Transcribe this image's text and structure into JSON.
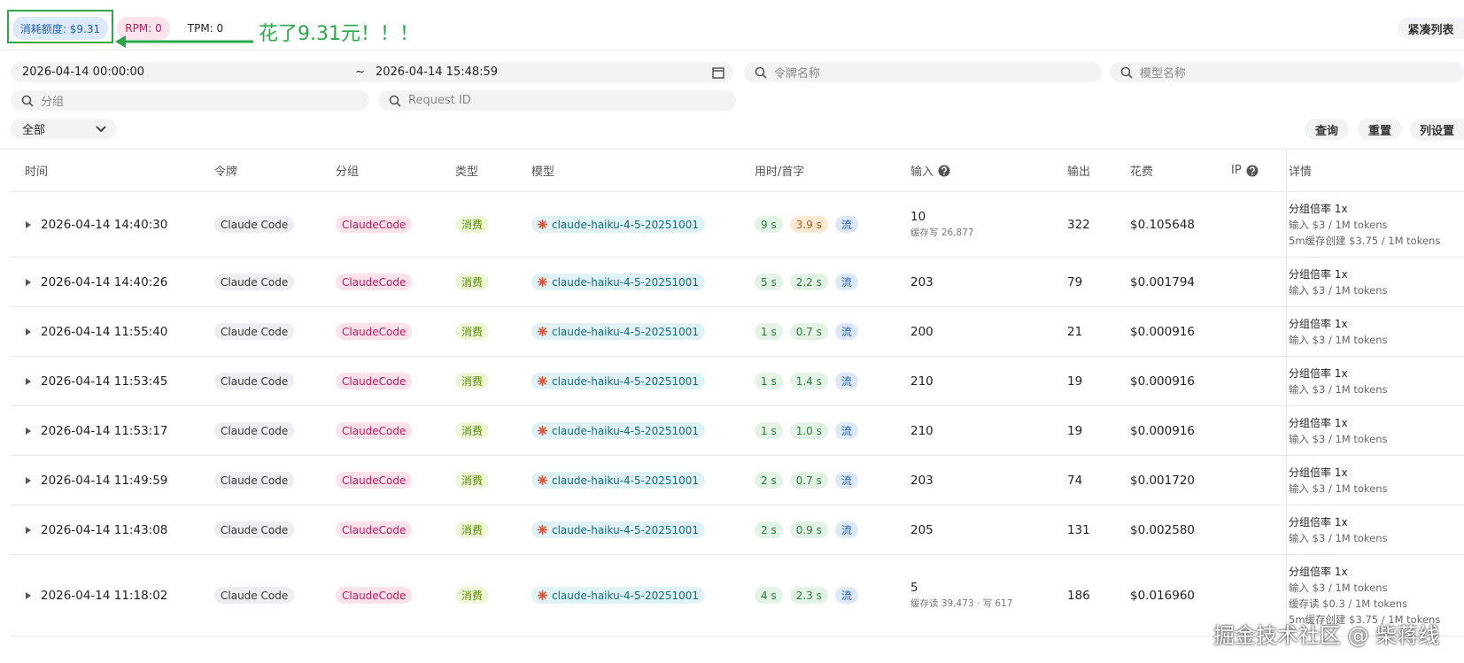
{
  "header": {
    "quota": "消耗额度: $9.31",
    "rpm": "RPM: 0",
    "tpm": "TPM: 0",
    "annotation": "花了9.31元！！！",
    "compact": "紧凑列表"
  },
  "filters": {
    "start": "2026-04-14 00:00:00",
    "separator": "~",
    "end": "2026-04-14 15:48:59",
    "token": "令牌名称",
    "model": "模型名称",
    "group": "分组",
    "request_id": "Request ID",
    "type": "全部",
    "buttons": [
      "查询",
      "重置",
      "列设置"
    ]
  },
  "table": {
    "columns": [
      "时间",
      "令牌",
      "分组",
      "类型",
      "模型",
      "用时/首字",
      "输入",
      "输出",
      "花费",
      "IP",
      "详情"
    ],
    "rows": [
      {
        "time": "2026-04-14 14:40:30",
        "token": "Claude Code",
        "group": "ClaudeCode",
        "type": "消费",
        "model": "claude-haiku-4-5-20251001",
        "duration": "9 s",
        "first": "3.9 s",
        "stream": "流",
        "input": "10",
        "input_note": "缓存写 26,877",
        "output": "322",
        "cost": "$0.105648",
        "details": [
          "分组倍率 1x",
          "输入 $3 / 1M tokens",
          "5m缓存创建 $3.75 / 1M tokens"
        ]
      },
      {
        "time": "2026-04-14 14:40:26",
        "token": "Claude Code",
        "group": "ClaudeCode",
        "type": "消费",
        "model": "claude-haiku-4-5-20251001",
        "duration": "5 s",
        "first": "2.2 s",
        "stream": "流",
        "input": "203",
        "output": "79",
        "cost": "$0.001794",
        "details": [
          "分组倍率 1x",
          "输入 $3 / 1M tokens"
        ]
      },
      {
        "time": "2026-04-14 11:55:40",
        "token": "Claude Code",
        "group": "ClaudeCode",
        "type": "消费",
        "model": "claude-haiku-4-5-20251001",
        "duration": "1 s",
        "first": "0.7 s",
        "stream": "流",
        "input": "200",
        "output": "21",
        "cost": "$0.000916",
        "details": [
          "分组倍率 1x",
          "输入 $3 / 1M tokens"
        ]
      },
      {
        "time": "2026-04-14 11:53:45",
        "token": "Claude Code",
        "group": "ClaudeCode",
        "type": "消费",
        "model": "claude-haiku-4-5-20251001",
        "duration": "1 s",
        "first": "1.4 s",
        "stream": "流",
        "input": "210",
        "output": "19",
        "cost": "$0.000916",
        "details": [
          "分组倍率 1x",
          "输入 $3 / 1M tokens"
        ]
      },
      {
        "time": "2026-04-14 11:53:17",
        "token": "Claude Code",
        "group": "ClaudeCode",
        "type": "消费",
        "model": "claude-haiku-4-5-20251001",
        "duration": "1 s",
        "first": "1.0 s",
        "stream": "流",
        "input": "210",
        "output": "19",
        "cost": "$0.000916",
        "details": [
          "分组倍率 1x",
          "输入 $3 / 1M tokens"
        ]
      },
      {
        "time": "2026-04-14 11:49:59",
        "token": "Claude Code",
        "group": "ClaudeCode",
        "type": "消费",
        "model": "claude-haiku-4-5-20251001",
        "duration": "2 s",
        "first": "0.7 s",
        "stream": "流",
        "input": "203",
        "output": "74",
        "cost": "$0.001720",
        "details": [
          "分组倍率 1x",
          "输入 $3 / 1M tokens"
        ]
      },
      {
        "time": "2026-04-14 11:43:08",
        "token": "Claude Code",
        "group": "ClaudeCode",
        "type": "消费",
        "model": "claude-haiku-4-5-20251001",
        "duration": "2 s",
        "first": "0.9 s",
        "stream": "流",
        "input": "205",
        "output": "131",
        "cost": "$0.002580",
        "details": [
          "分组倍率 1x",
          "输入 $3 / 1M tokens"
        ]
      },
      {
        "time": "2026-04-14 11:18:02",
        "token": "Claude Code",
        "group": "ClaudeCode",
        "type": "消费",
        "model": "claude-haiku-4-5-20251001",
        "duration": "4 s",
        "first": "2.3 s",
        "stream": "流",
        "input": "5",
        "input_note": "缓存读 39,473 · 写 617",
        "output": "186",
        "cost": "$0.016960",
        "details": [
          "分组倍率 1x",
          "输入 $3 / 1M tokens",
          "缓存读 $0.3 / 1M tokens",
          "5m缓存创建 $3.75 / 1M tokens"
        ]
      }
    ]
  },
  "watermark": "掘金技术社区 @ 柴蒋线"
}
